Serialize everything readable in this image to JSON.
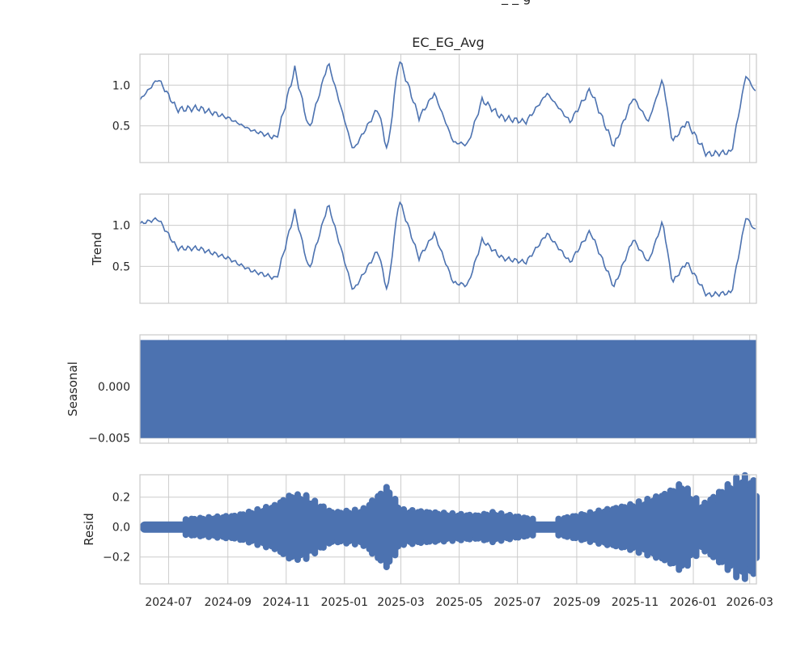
{
  "chart_data": [
    {
      "type": "line",
      "title": "EC_EG_Avg",
      "ylabel": "",
      "ylim": [
        0.05,
        1.38
      ],
      "yticks": [
        0.5,
        1.0
      ],
      "ytick_labels": [
        "0.5",
        "1.0"
      ],
      "x_dates": [
        "2024-06-01",
        "2024-06-20",
        "2024-07-10",
        "2024-08-01",
        "2024-09-01",
        "2024-09-25",
        "2024-10-22",
        "2024-11-10",
        "2024-11-25",
        "2024-12-15",
        "2025-01-10",
        "2025-02-05",
        "2025-02-15",
        "2025-02-27",
        "2025-03-20",
        "2025-04-05",
        "2025-04-25",
        "2025-05-10",
        "2025-05-25",
        "2025-06-15",
        "2025-07-10",
        "2025-08-01",
        "2025-08-25",
        "2025-09-15",
        "2025-10-10",
        "2025-10-30",
        "2025-11-15",
        "2025-11-30",
        "2025-12-10",
        "2025-12-25",
        "2026-01-15",
        "2026-02-10",
        "2026-02-25",
        "2026-03-08"
      ],
      "series": [
        {
          "values": [
            0.82,
            1.08,
            0.7,
            0.72,
            0.6,
            0.45,
            0.35,
            1.2,
            0.45,
            1.28,
            0.2,
            0.72,
            0.18,
            1.33,
            0.6,
            0.9,
            0.3,
            0.27,
            0.82,
            0.6,
            0.55,
            0.9,
            0.55,
            0.95,
            0.25,
            0.85,
            0.55,
            1.08,
            0.3,
            0.55,
            0.15,
            0.18,
            1.12,
            0.9
          ]
        }
      ]
    },
    {
      "type": "line",
      "title": "",
      "ylabel": "Trend",
      "ylim": [
        0.05,
        1.38
      ],
      "yticks": [
        0.5,
        1.0
      ],
      "ytick_labels": [
        "0.5",
        "1.0"
      ],
      "x_dates": [
        "2024-06-01",
        "2024-06-20",
        "2024-07-10",
        "2024-08-01",
        "2024-09-01",
        "2024-09-25",
        "2024-10-22",
        "2024-11-10",
        "2024-11-25",
        "2024-12-15",
        "2025-01-10",
        "2025-02-05",
        "2025-02-15",
        "2025-02-27",
        "2025-03-20",
        "2025-04-05",
        "2025-04-25",
        "2025-05-10",
        "2025-05-25",
        "2025-06-15",
        "2025-07-10",
        "2025-08-01",
        "2025-08-25",
        "2025-09-15",
        "2025-10-10",
        "2025-10-30",
        "2025-11-15",
        "2025-11-30",
        "2025-12-10",
        "2025-12-25",
        "2026-01-15",
        "2026-02-10",
        "2026-02-25",
        "2026-03-08"
      ],
      "series": [
        {
          "values": [
            1.02,
            1.08,
            0.72,
            0.72,
            0.6,
            0.45,
            0.35,
            1.17,
            0.45,
            1.26,
            0.2,
            0.7,
            0.18,
            1.32,
            0.6,
            0.9,
            0.3,
            0.27,
            0.82,
            0.6,
            0.55,
            0.9,
            0.55,
            0.93,
            0.25,
            0.83,
            0.55,
            1.05,
            0.3,
            0.55,
            0.15,
            0.18,
            1.1,
            0.92
          ]
        }
      ]
    },
    {
      "type": "area",
      "title": "",
      "ylabel": "Seasonal",
      "ylim": [
        -0.0055,
        0.005
      ],
      "yticks": [
        0.0,
        -0.005
      ],
      "ytick_labels": [
        "0.000",
        "−0.005"
      ],
      "band": [
        -0.005,
        0.0045
      ]
    },
    {
      "type": "scatter",
      "title": "",
      "ylabel": "Resid",
      "ylim": [
        -0.38,
        0.35
      ],
      "yticks": [
        0.2,
        0.0,
        -0.2
      ],
      "ytick_labels": [
        "0.2",
        "0.0",
        "−0.2"
      ],
      "x_dates": [
        "2024-06-01",
        "2024-09-10",
        "2024-10-20",
        "2024-11-05",
        "2024-11-20",
        "2024-12-20",
        "2025-01-20",
        "2025-02-15",
        "2025-03-01",
        "2025-04-05",
        "2025-05-20",
        "2025-06-05",
        "2025-08-01",
        "2025-10-25",
        "2025-11-20",
        "2025-12-05",
        "2025-12-20",
        "2026-01-10",
        "2026-02-20",
        "2026-03-05"
      ],
      "series": [
        {
          "name": "",
          "amplitude": [
            0.03,
            0.08,
            0.15,
            0.22,
            0.22,
            0.1,
            0.12,
            0.28,
            0.12,
            0.1,
            0.08,
            0.1,
            0.04,
            0.15,
            0.2,
            0.24,
            0.3,
            0.15,
            0.36,
            0.32
          ]
        }
      ]
    }
  ],
  "x_axis": {
    "range": [
      "2024-06-01",
      "2026-03-08"
    ],
    "ticks": [
      "2024-07-01",
      "2024-09-01",
      "2024-11-01",
      "2025-01-01",
      "2025-03-01",
      "2025-05-01",
      "2025-07-01",
      "2025-09-01",
      "2025-11-01",
      "2026-01-01",
      "2026-03-01"
    ],
    "tick_labels": [
      "2024-07",
      "2024-09",
      "2024-11",
      "2025-01",
      "2025-03",
      "2025-05",
      "2025-07",
      "2025-09",
      "2025-11",
      "2026-01",
      "2026-03"
    ]
  },
  "colors": {
    "line": "#4c72b0",
    "grid": "#cccccc",
    "text": "#262626"
  },
  "grid": true
}
